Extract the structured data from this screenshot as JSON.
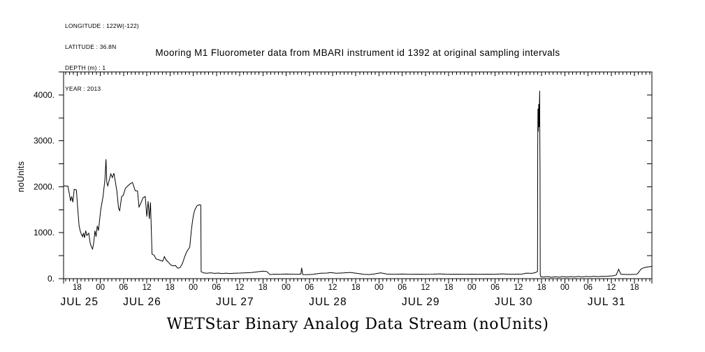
{
  "meta": {
    "lines": [
      "LONGITUDE : 122W(-122)",
      "LATITUDE : 36.8N",
      "DEPTH (m) : 1",
      "YEAR : 2013"
    ]
  },
  "colors": {
    "foreground": "#000000",
    "background": "#ffffff"
  },
  "chart_data": {
    "type": "line",
    "title": "Mooring M1 Fluorometer data from MBARI instrument id 1392 at original sampling intervals",
    "bottom_title": "WETStar Binary Analog Data Stream (noUnits)",
    "ylabel": "noUnits",
    "xlabel": "",
    "x_unit": "hours since JUL 25 2013 00:00",
    "xlim": [
      14.5,
      166.5
    ],
    "ylim": [
      0,
      4500
    ],
    "grid": false,
    "y_minor_step": 500,
    "x_minor_step": 1,
    "y_ticks": [
      {
        "v": 0,
        "label": "0."
      },
      {
        "v": 1000,
        "label": "1000."
      },
      {
        "v": 2000,
        "label": "2000."
      },
      {
        "v": 3000,
        "label": "3000."
      },
      {
        "v": 4000,
        "label": "4000."
      }
    ],
    "x_hour_ticks": [
      {
        "t": 18,
        "label": "18"
      },
      {
        "t": 24,
        "label": "00"
      },
      {
        "t": 30,
        "label": "06"
      },
      {
        "t": 36,
        "label": "12"
      },
      {
        "t": 42,
        "label": "18"
      },
      {
        "t": 48,
        "label": "00"
      },
      {
        "t": 54,
        "label": "06"
      },
      {
        "t": 60,
        "label": "12"
      },
      {
        "t": 66,
        "label": "18"
      },
      {
        "t": 72,
        "label": "00"
      },
      {
        "t": 78,
        "label": "06"
      },
      {
        "t": 84,
        "label": "12"
      },
      {
        "t": 90,
        "label": "18"
      },
      {
        "t": 96,
        "label": "00"
      },
      {
        "t": 102,
        "label": "06"
      },
      {
        "t": 108,
        "label": "12"
      },
      {
        "t": 114,
        "label": "18"
      },
      {
        "t": 120,
        "label": "00"
      },
      {
        "t": 126,
        "label": "06"
      },
      {
        "t": 132,
        "label": "12"
      },
      {
        "t": 138,
        "label": "18"
      },
      {
        "t": 144,
        "label": "00"
      },
      {
        "t": 150,
        "label": "06"
      },
      {
        "t": 156,
        "label": "12"
      },
      {
        "t": 162,
        "label": "18"
      }
    ],
    "date_labels": [
      {
        "t": 18.6,
        "label": "JUL 25"
      },
      {
        "t": 34.8,
        "label": "JUL 26"
      },
      {
        "t": 58.8,
        "label": "JUL 27"
      },
      {
        "t": 82.8,
        "label": "JUL 28"
      },
      {
        "t": 106.8,
        "label": "JUL 29"
      },
      {
        "t": 130.8,
        "label": "JUL 30"
      },
      {
        "t": 154.8,
        "label": "JUL 31"
      }
    ],
    "series": [
      {
        "name": "fluorometer",
        "points": [
          [
            14.5,
            2020
          ],
          [
            15.6,
            2015
          ],
          [
            16.0,
            1845
          ],
          [
            16.3,
            1690
          ],
          [
            16.6,
            1790
          ],
          [
            16.9,
            1665
          ],
          [
            17.25,
            1945
          ],
          [
            17.8,
            1930
          ],
          [
            18.2,
            1480
          ],
          [
            18.5,
            1150
          ],
          [
            18.8,
            1040
          ],
          [
            19.1,
            965
          ],
          [
            19.4,
            915
          ],
          [
            19.65,
            995
          ],
          [
            19.9,
            890
          ],
          [
            20.2,
            1045
          ],
          [
            20.5,
            940
          ],
          [
            21.0,
            990
          ],
          [
            21.4,
            765
          ],
          [
            21.7,
            690
          ],
          [
            22.0,
            645
          ],
          [
            22.3,
            790
          ],
          [
            22.6,
            1045
          ],
          [
            22.9,
            915
          ],
          [
            23.2,
            1150
          ],
          [
            23.5,
            1045
          ],
          [
            24.1,
            1505
          ],
          [
            24.7,
            1790
          ],
          [
            25.2,
            2180
          ],
          [
            25.45,
            2600
          ],
          [
            25.65,
            2100
          ],
          [
            25.9,
            2020
          ],
          [
            26.3,
            2150
          ],
          [
            26.7,
            2280
          ],
          [
            27.1,
            2200
          ],
          [
            27.5,
            2295
          ],
          [
            27.9,
            2100
          ],
          [
            28.3,
            1890
          ],
          [
            28.7,
            1530
          ],
          [
            29.0,
            1480
          ],
          [
            29.5,
            1790
          ],
          [
            29.9,
            1810
          ],
          [
            30.5,
            1970
          ],
          [
            31.1,
            2020
          ],
          [
            31.7,
            2065
          ],
          [
            32.3,
            2095
          ],
          [
            33.0,
            1915
          ],
          [
            33.6,
            1910
          ],
          [
            34.0,
            1560
          ],
          [
            34.4,
            1630
          ],
          [
            35.0,
            1760
          ],
          [
            35.6,
            1790
          ],
          [
            36.0,
            1350
          ],
          [
            36.35,
            1685
          ],
          [
            36.65,
            1300
          ],
          [
            36.95,
            1660
          ],
          [
            37.35,
            535
          ],
          [
            37.9,
            510
          ],
          [
            38.4,
            430
          ],
          [
            39.3,
            405
          ],
          [
            40.1,
            380
          ],
          [
            40.55,
            480
          ],
          [
            41.0,
            405
          ],
          [
            41.6,
            355
          ],
          [
            42.2,
            300
          ],
          [
            42.8,
            278
          ],
          [
            43.4,
            288
          ],
          [
            44.0,
            226
          ],
          [
            44.6,
            240
          ],
          [
            45.2,
            330
          ],
          [
            45.8,
            480
          ],
          [
            46.3,
            585
          ],
          [
            46.7,
            635
          ],
          [
            47.1,
            690
          ],
          [
            47.5,
            1045
          ],
          [
            47.8,
            1250
          ],
          [
            48.1,
            1405
          ],
          [
            48.45,
            1505
          ],
          [
            49.0,
            1590
          ],
          [
            49.7,
            1610
          ],
          [
            49.95,
            1600
          ],
          [
            50.05,
            150
          ],
          [
            50.7,
            125
          ],
          [
            51.5,
            118
          ],
          [
            52.5,
            128
          ],
          [
            53.5,
            115
          ],
          [
            54.5,
            122
          ],
          [
            55.5,
            112
          ],
          [
            56.5,
            120
          ],
          [
            57.5,
            112
          ],
          [
            58.5,
            118
          ],
          [
            60.0,
            122
          ],
          [
            61.5,
            128
          ],
          [
            63.0,
            132
          ],
          [
            64.7,
            150
          ],
          [
            66.0,
            162
          ],
          [
            67.0,
            155
          ],
          [
            67.8,
            90
          ],
          [
            69.0,
            98
          ],
          [
            70.5,
            95
          ],
          [
            72.0,
            100
          ],
          [
            73.5,
            98
          ],
          [
            75.0,
            95
          ],
          [
            75.8,
            100
          ],
          [
            76.0,
            235
          ],
          [
            76.3,
            90
          ],
          [
            77.5,
            88
          ],
          [
            79.0,
            95
          ],
          [
            80.9,
            118
          ],
          [
            82.5,
            122
          ],
          [
            83.5,
            132
          ],
          [
            85.0,
            118
          ],
          [
            86.8,
            125
          ],
          [
            88.5,
            135
          ],
          [
            90.0,
            120
          ],
          [
            92.0,
            95
          ],
          [
            93.5,
            90
          ],
          [
            95.0,
            105
          ],
          [
            96.4,
            128
          ],
          [
            98.0,
            100
          ],
          [
            100.0,
            95
          ],
          [
            102.0,
            100
          ],
          [
            104.0,
            95
          ],
          [
            106.0,
            98
          ],
          [
            108.0,
            95
          ],
          [
            110.0,
            98
          ],
          [
            111.7,
            105
          ],
          [
            113.5,
            95
          ],
          [
            116.0,
            98
          ],
          [
            118.0,
            95
          ],
          [
            120.0,
            98
          ],
          [
            122.0,
            95
          ],
          [
            124.0,
            98
          ],
          [
            126.0,
            95
          ],
          [
            127.8,
            105
          ],
          [
            129.5,
            98
          ],
          [
            131.0,
            98
          ],
          [
            133.0,
            100
          ],
          [
            134.0,
            120
          ],
          [
            135.5,
            115
          ],
          [
            136.5,
            135
          ],
          [
            136.95,
            160
          ],
          [
            137.0,
            2860
          ],
          [
            137.05,
            3700
          ],
          [
            137.15,
            3200
          ],
          [
            137.25,
            3800
          ],
          [
            137.35,
            3300
          ],
          [
            137.45,
            3850
          ],
          [
            137.5,
            4090
          ],
          [
            137.55,
            3100
          ],
          [
            137.6,
            2400
          ],
          [
            137.65,
            90
          ],
          [
            137.8,
            40
          ],
          [
            138.5,
            35
          ],
          [
            139.5,
            45
          ],
          [
            140.5,
            30
          ],
          [
            141.5,
            42
          ],
          [
            142.5,
            32
          ],
          [
            143.5,
            45
          ],
          [
            144.5,
            34
          ],
          [
            145.5,
            46
          ],
          [
            146.5,
            36
          ],
          [
            147.5,
            48
          ],
          [
            148.5,
            38
          ],
          [
            149.5,
            50
          ],
          [
            150.5,
            42
          ],
          [
            151.5,
            52
          ],
          [
            152.5,
            44
          ],
          [
            153.5,
            52
          ],
          [
            154.5,
            48
          ],
          [
            155.5,
            55
          ],
          [
            156.5,
            62
          ],
          [
            157.3,
            80
          ],
          [
            157.9,
            205
          ],
          [
            158.2,
            150
          ],
          [
            158.5,
            95
          ],
          [
            159.5,
            92
          ],
          [
            160.5,
            90
          ],
          [
            161.5,
            92
          ],
          [
            162.5,
            95
          ],
          [
            162.9,
            120
          ],
          [
            163.3,
            165
          ],
          [
            163.8,
            215
          ],
          [
            164.5,
            240
          ],
          [
            165.3,
            255
          ],
          [
            166.2,
            262
          ],
          [
            166.5,
            272
          ]
        ]
      }
    ]
  }
}
